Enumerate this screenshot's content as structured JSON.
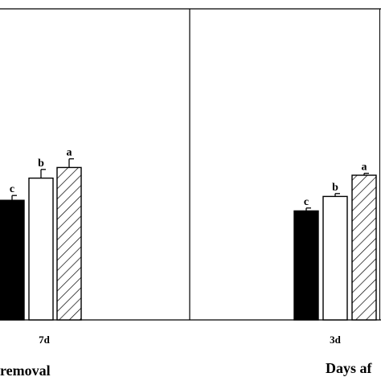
{
  "chart_data": [
    {
      "type": "bar",
      "title": "",
      "categories": [
        "7d"
      ],
      "series": [
        {
          "style": "solid-black",
          "values": [
            62
          ],
          "errors": [
            2.5
          ],
          "letters": [
            "c"
          ]
        },
        {
          "style": "white",
          "values": [
            73.5
          ],
          "errors": [
            4.5
          ],
          "letters": [
            "b"
          ]
        },
        {
          "style": "hatched",
          "values": [
            79
          ],
          "errors": [
            4.5
          ],
          "letters": [
            "a"
          ]
        }
      ],
      "xlabel": "removal",
      "ylabel": "",
      "ylim": [
        0,
        100
      ],
      "grid": false,
      "legend": "none"
    },
    {
      "type": "bar",
      "title": "",
      "categories": [
        "3d"
      ],
      "series": [
        {
          "style": "solid-black",
          "values": [
            56.5
          ],
          "errors": [
            1.5
          ],
          "letters": [
            "c"
          ]
        },
        {
          "style": "white",
          "values": [
            64
          ],
          "errors": [
            1.5
          ],
          "letters": [
            "b"
          ]
        },
        {
          "style": "hatched",
          "values": [
            75
          ],
          "errors": [
            1
          ],
          "letters": [
            "a"
          ]
        }
      ],
      "xlabel": "Days af",
      "ylabel": "",
      "ylim": [
        0,
        100
      ],
      "grid": false,
      "legend": "none"
    }
  ],
  "colors": {
    "solid": "#000000",
    "white": "#ffffff",
    "stroke": "#000000"
  }
}
